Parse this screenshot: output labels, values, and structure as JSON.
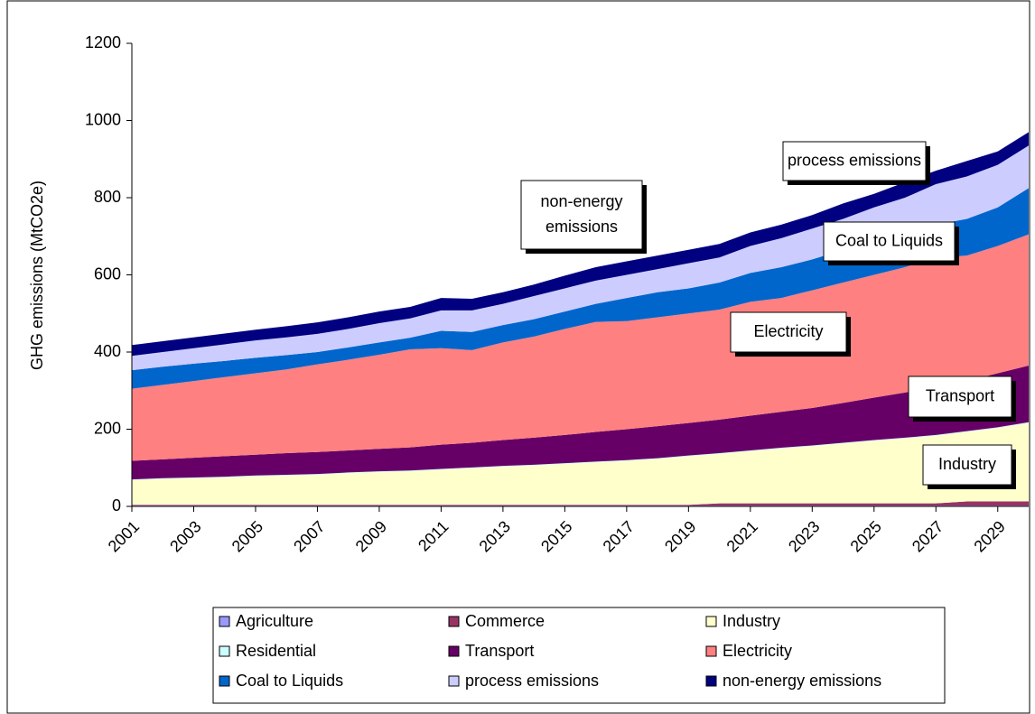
{
  "chart_data": {
    "type": "stacked_area",
    "y_label": "GHG emissions (MtCO2e)",
    "x": [
      2001,
      2002,
      2003,
      2004,
      2005,
      2006,
      2007,
      2008,
      2009,
      2010,
      2011,
      2012,
      2013,
      2014,
      2015,
      2016,
      2017,
      2018,
      2019,
      2020,
      2021,
      2022,
      2023,
      2024,
      2025,
      2026,
      2027,
      2028,
      2029,
      2030
    ],
    "xlim": [
      2001,
      2030
    ],
    "xticks": [
      2001,
      2003,
      2005,
      2007,
      2009,
      2011,
      2013,
      2015,
      2017,
      2019,
      2021,
      2023,
      2025,
      2027,
      2029
    ],
    "ylim": [
      0,
      1200
    ],
    "yticks": [
      0,
      200,
      400,
      600,
      800,
      1000,
      1200
    ],
    "grid": false,
    "series": [
      {
        "name": "Agriculture",
        "color": "#9999ff",
        "values": [
          2,
          2,
          2,
          2,
          2,
          2,
          2,
          2,
          2,
          2,
          2,
          2,
          2,
          2,
          2,
          2,
          2,
          2,
          2,
          2,
          2,
          2,
          2,
          2,
          2,
          2,
          2,
          2,
          2,
          2
        ]
      },
      {
        "name": "Commerce",
        "color": "#993366",
        "values": [
          2,
          2,
          2,
          2,
          2,
          2,
          2,
          2,
          2,
          2,
          2,
          2,
          2,
          2,
          2,
          2,
          2,
          2,
          2,
          6,
          6,
          6,
          6,
          6,
          6,
          6,
          6,
          11,
          11,
          11
        ]
      },
      {
        "name": "Industry",
        "color": "#ffffcc",
        "values": [
          64,
          67,
          69,
          71,
          74,
          76,
          78,
          82,
          85,
          87,
          91,
          95,
          99,
          102,
          106,
          110,
          114,
          119,
          126,
          128,
          135,
          142,
          148,
          155,
          162,
          168,
          175,
          180,
          190,
          203
        ]
      },
      {
        "name": "Residential",
        "color": "#ccffff",
        "values": [
          2,
          2,
          2,
          2,
          2,
          2,
          2,
          2,
          2,
          2,
          2,
          2,
          2,
          2,
          2,
          2,
          2,
          2,
          2,
          2,
          2,
          2,
          2,
          2,
          2,
          2,
          2,
          2,
          2,
          2
        ]
      },
      {
        "name": "Transport",
        "color": "#660066",
        "values": [
          48,
          49,
          51,
          53,
          54,
          56,
          57,
          57,
          58,
          60,
          63,
          64,
          67,
          70,
          73,
          77,
          80,
          83,
          84,
          87,
          90,
          93,
          97,
          103,
          110,
          117,
          125,
          130,
          140,
          147
        ]
      },
      {
        "name": "Electricity",
        "color": "#ff8080",
        "values": [
          187,
          193,
          199,
          205,
          211,
          217,
          227,
          235,
          244,
          254,
          250,
          240,
          253,
          262,
          275,
          285,
          280,
          282,
          284,
          285,
          295,
          295,
          305,
          312,
          318,
          325,
          335,
          325,
          330,
          340
        ]
      },
      {
        "name": "Coal to Liquids",
        "color": "#0066cc",
        "values": [
          48,
          47,
          45,
          42,
          40,
          37,
          32,
          32,
          32,
          30,
          45,
          47,
          45,
          45,
          45,
          47,
          60,
          65,
          65,
          70,
          75,
          80,
          80,
          85,
          90,
          90,
          85,
          95,
          100,
          120
        ]
      },
      {
        "name": "process emissions",
        "color": "#ccccff",
        "values": [
          37,
          38,
          40,
          43,
          45,
          46,
          47,
          48,
          50,
          50,
          53,
          56,
          55,
          60,
          60,
          60,
          60,
          60,
          65,
          65,
          70,
          75,
          80,
          80,
          85,
          90,
          105,
          110,
          110,
          110
        ]
      },
      {
        "name": "non-energy emissions",
        "color": "#000080",
        "values": [
          28,
          28,
          28,
          28,
          28,
          29,
          30,
          30,
          30,
          30,
          32,
          30,
          30,
          30,
          33,
          35,
          35,
          35,
          35,
          35,
          35,
          35,
          35,
          40,
          35,
          40,
          35,
          40,
          35,
          35
        ]
      }
    ],
    "annotations": [
      {
        "lines": [
          "non-energy",
          "emissions"
        ]
      },
      {
        "lines": [
          "process emissions"
        ]
      },
      {
        "lines": [
          "Coal to Liquids"
        ]
      },
      {
        "lines": [
          "Electricity"
        ]
      },
      {
        "lines": [
          "Transport"
        ]
      },
      {
        "lines": [
          "Industry"
        ]
      }
    ]
  }
}
